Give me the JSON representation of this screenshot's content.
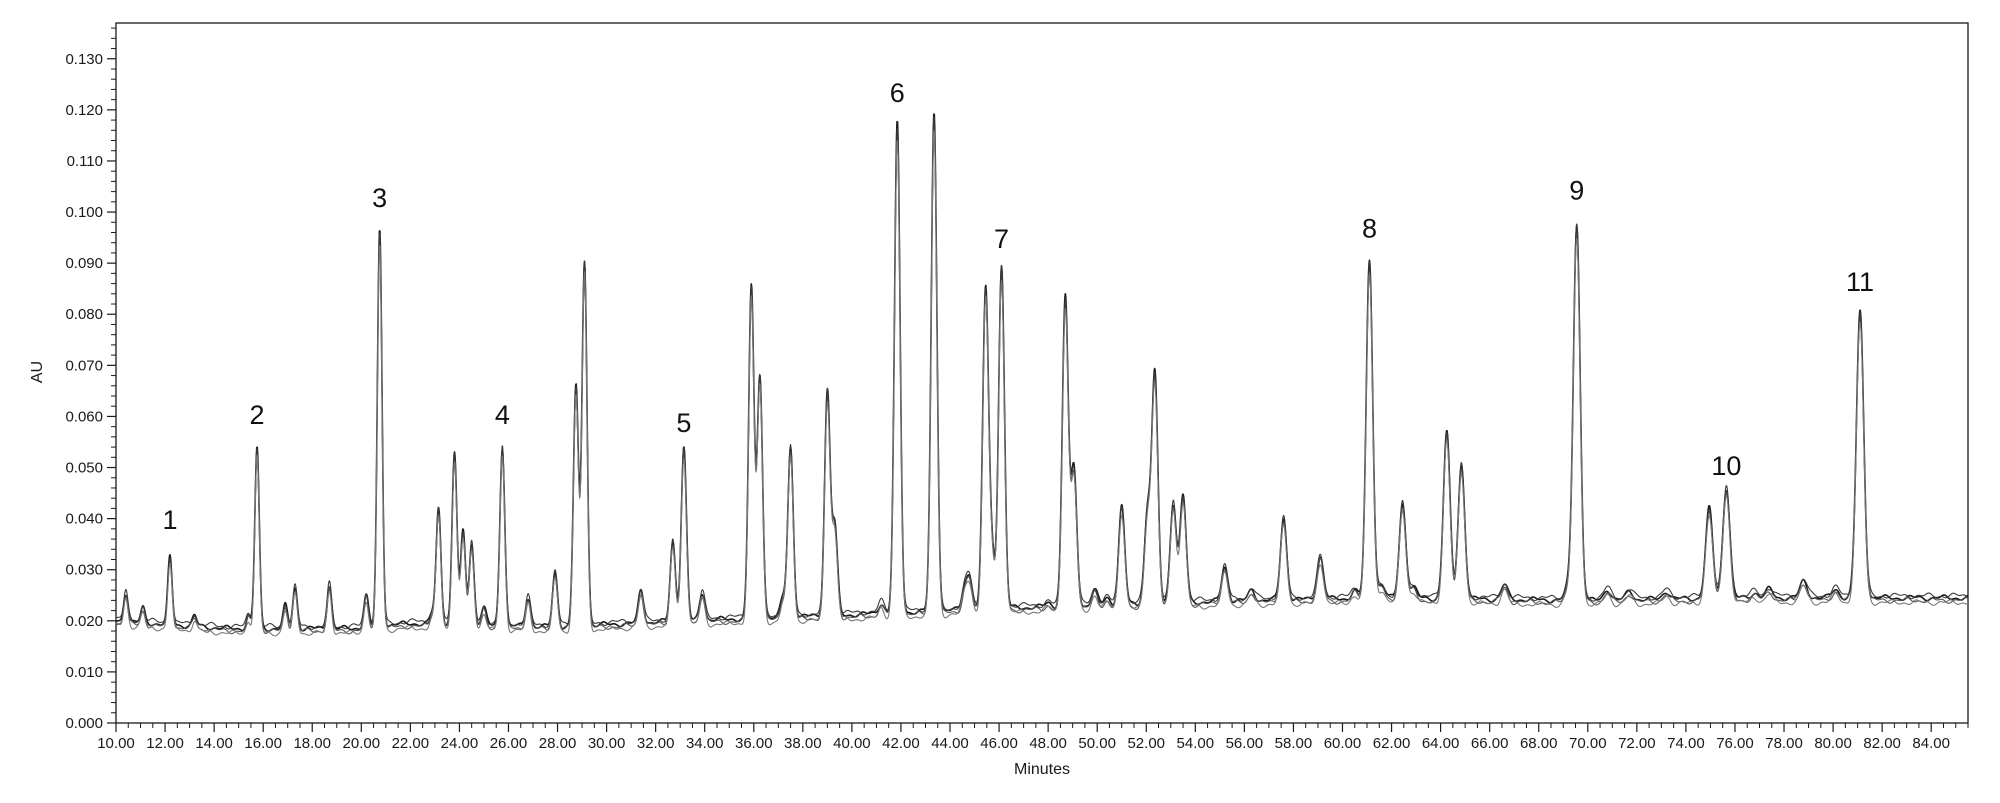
{
  "chart_data": {
    "type": "line",
    "title": "",
    "xlabel": "Minutes",
    "ylabel": "AU",
    "xlim": [
      10.0,
      85.5
    ],
    "ylim": [
      0.0,
      0.137
    ],
    "grid": false,
    "x_ticks": [
      "10.00",
      "12.00",
      "14.00",
      "16.00",
      "18.00",
      "20.00",
      "22.00",
      "24.00",
      "26.00",
      "28.00",
      "30.00",
      "32.00",
      "34.00",
      "36.00",
      "38.00",
      "40.00",
      "42.00",
      "44.00",
      "46.00",
      "48.00",
      "50.00",
      "52.00",
      "54.00",
      "56.00",
      "58.00",
      "60.00",
      "62.00",
      "64.00",
      "66.00",
      "68.00",
      "70.00",
      "72.00",
      "74.00",
      "76.00",
      "78.00",
      "80.00",
      "82.00",
      "84.00"
    ],
    "y_ticks": [
      "0.000",
      "0.010",
      "0.020",
      "0.030",
      "0.040",
      "0.050",
      "0.060",
      "0.070",
      "0.080",
      "0.090",
      "0.100",
      "0.110",
      "0.120",
      "0.130"
    ],
    "baseline": [
      [
        10.0,
        0.02
      ],
      [
        14.6,
        0.0185
      ],
      [
        19.6,
        0.0185
      ],
      [
        22.0,
        0.0195
      ],
      [
        28.0,
        0.0188
      ],
      [
        33.0,
        0.02
      ],
      [
        36.0,
        0.0205
      ],
      [
        40.0,
        0.0212
      ],
      [
        46.0,
        0.0225
      ],
      [
        50.0,
        0.023
      ],
      [
        56.0,
        0.024
      ],
      [
        62.0,
        0.0245
      ],
      [
        70.0,
        0.024
      ],
      [
        76.0,
        0.0245
      ],
      [
        85.5,
        0.0245
      ]
    ],
    "peaks": [
      {
        "rt": 10.4,
        "h": 0.0255
      },
      {
        "rt": 11.1,
        "h": 0.0225
      },
      {
        "rt": 12.2,
        "h": 0.0325
      },
      {
        "rt": 13.2,
        "h": 0.021
      },
      {
        "rt": 15.4,
        "h": 0.021
      },
      {
        "rt": 15.75,
        "h": 0.054
      },
      {
        "rt": 16.9,
        "h": 0.023
      },
      {
        "rt": 17.3,
        "h": 0.0265
      },
      {
        "rt": 18.7,
        "h": 0.027
      },
      {
        "rt": 20.2,
        "h": 0.025
      },
      {
        "rt": 20.75,
        "h": 0.0965
      },
      {
        "rt": 22.9,
        "h": 0.0215
      },
      {
        "rt": 23.15,
        "h": 0.042
      },
      {
        "rt": 23.8,
        "h": 0.053
      },
      {
        "rt": 24.15,
        "h": 0.0375
      },
      {
        "rt": 24.5,
        "h": 0.035
      },
      {
        "rt": 25.0,
        "h": 0.0225
      },
      {
        "rt": 25.75,
        "h": 0.054
      },
      {
        "rt": 26.8,
        "h": 0.0245
      },
      {
        "rt": 27.9,
        "h": 0.0295
      },
      {
        "rt": 28.75,
        "h": 0.066
      },
      {
        "rt": 29.1,
        "h": 0.0905
      },
      {
        "rt": 31.4,
        "h": 0.026
      },
      {
        "rt": 32.7,
        "h": 0.0355
      },
      {
        "rt": 33.15,
        "h": 0.054
      },
      {
        "rt": 33.9,
        "h": 0.0255
      },
      {
        "rt": 35.9,
        "h": 0.0855
      },
      {
        "rt": 36.25,
        "h": 0.068
      },
      {
        "rt": 37.2,
        "h": 0.0245
      },
      {
        "rt": 37.5,
        "h": 0.054
      },
      {
        "rt": 39.0,
        "h": 0.065
      },
      {
        "rt": 39.3,
        "h": 0.0385
      },
      {
        "rt": 41.2,
        "h": 0.0235
      },
      {
        "rt": 41.85,
        "h": 0.1175
      },
      {
        "rt": 43.35,
        "h": 0.1195
      },
      {
        "rt": 44.6,
        "h": 0.026
      },
      {
        "rt": 44.8,
        "h": 0.028
      },
      {
        "rt": 45.45,
        "h": 0.0845
      },
      {
        "rt": 45.7,
        "h": 0.033
      },
      {
        "rt": 46.1,
        "h": 0.0895
      },
      {
        "rt": 48.0,
        "h": 0.0235
      },
      {
        "rt": 48.7,
        "h": 0.0835
      },
      {
        "rt": 49.05,
        "h": 0.0495
      },
      {
        "rt": 49.9,
        "h": 0.026
      },
      {
        "rt": 50.4,
        "h": 0.0245
      },
      {
        "rt": 51.0,
        "h": 0.0425
      },
      {
        "rt": 52.05,
        "h": 0.041
      },
      {
        "rt": 52.35,
        "h": 0.068
      },
      {
        "rt": 53.1,
        "h": 0.043
      },
      {
        "rt": 53.5,
        "h": 0.0445
      },
      {
        "rt": 55.2,
        "h": 0.0305
      },
      {
        "rt": 56.3,
        "h": 0.026
      },
      {
        "rt": 57.6,
        "h": 0.04
      },
      {
        "rt": 59.1,
        "h": 0.0325
      },
      {
        "rt": 60.5,
        "h": 0.026
      },
      {
        "rt": 61.1,
        "h": 0.0905
      },
      {
        "rt": 61.6,
        "h": 0.027
      },
      {
        "rt": 62.45,
        "h": 0.043
      },
      {
        "rt": 62.9,
        "h": 0.0265
      },
      {
        "rt": 64.25,
        "h": 0.057
      },
      {
        "rt": 64.85,
        "h": 0.0505
      },
      {
        "rt": 66.6,
        "h": 0.027
      },
      {
        "rt": 69.2,
        "h": 0.0265
      },
      {
        "rt": 69.55,
        "h": 0.0975
      },
      {
        "rt": 70.8,
        "h": 0.0262
      },
      {
        "rt": 71.7,
        "h": 0.0258
      },
      {
        "rt": 73.2,
        "h": 0.0258
      },
      {
        "rt": 74.95,
        "h": 0.042
      },
      {
        "rt": 75.65,
        "h": 0.046
      },
      {
        "rt": 76.8,
        "h": 0.0255
      },
      {
        "rt": 77.4,
        "h": 0.0262
      },
      {
        "rt": 78.8,
        "h": 0.0278
      },
      {
        "rt": 80.1,
        "h": 0.0262
      },
      {
        "rt": 81.1,
        "h": 0.0805
      }
    ],
    "annotations": [
      {
        "label": "1",
        "x": 12.2,
        "y": 0.038
      },
      {
        "label": "2",
        "x": 15.75,
        "y": 0.0585
      },
      {
        "label": "3",
        "x": 20.75,
        "y": 0.101
      },
      {
        "label": "4",
        "x": 25.75,
        "y": 0.0585
      },
      {
        "label": "5",
        "x": 33.15,
        "y": 0.057
      },
      {
        "label": "6",
        "x": 41.85,
        "y": 0.1215
      },
      {
        "label": "7",
        "x": 46.1,
        "y": 0.093
      },
      {
        "label": "8",
        "x": 61.1,
        "y": 0.095
      },
      {
        "label": "9",
        "x": 69.55,
        "y": 0.1025
      },
      {
        "label": "10",
        "x": 75.65,
        "y": 0.0485
      },
      {
        "label": "11",
        "x": 81.1,
        "y": 0.0845
      }
    ],
    "series": [
      {
        "dy": 0.0,
        "scale": 1.0,
        "color": "#1a1a1a"
      },
      {
        "dy": -0.0005,
        "scale": 0.985,
        "color": "#555555"
      },
      {
        "dy": 0.0004,
        "scale": 0.99,
        "color": "#3a3a3a"
      },
      {
        "dy": -0.0009,
        "scale": 0.975,
        "color": "#777777"
      }
    ]
  }
}
